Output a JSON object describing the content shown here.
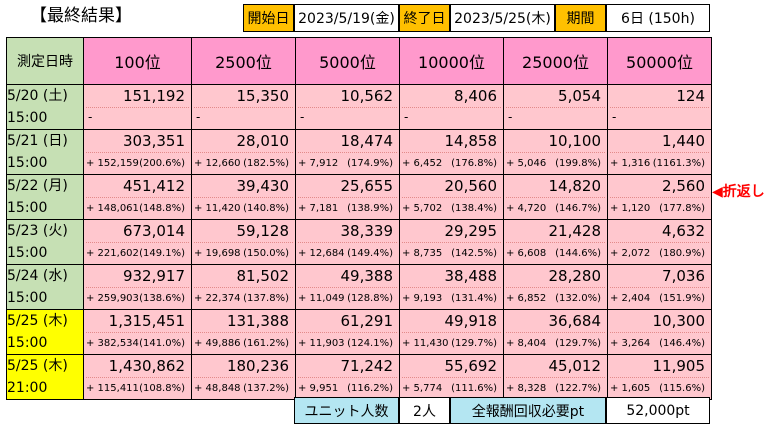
{
  "title": "【最終結果】",
  "header": {
    "start_label": "開始日",
    "start_value": "2023/5/19(金)",
    "end_label": "終了日",
    "end_value": "2023/5/25(木)",
    "period_label": "期間",
    "period_value": "6日 (150h)"
  },
  "table": {
    "corner": "測定日時",
    "columns": [
      "100位",
      "2500位",
      "5000位",
      "10000位",
      "25000位",
      "50000位"
    ],
    "rows": [
      {
        "date": "5/20 (土)",
        "time": "15:00",
        "highlight": false,
        "cells": [
          {
            "value": "151,192"
          },
          {
            "value": "15,350"
          },
          {
            "value": "10,562"
          },
          {
            "value": "8,406"
          },
          {
            "value": "5,054"
          },
          {
            "value": "124"
          }
        ]
      },
      {
        "date": "5/21 (日)",
        "time": "15:00",
        "highlight": false,
        "cells": [
          {
            "value": "303,351",
            "inc": "+ 152,159",
            "pct": "(200.6%)"
          },
          {
            "value": "28,010",
            "inc": "+ 12,660",
            "pct": "(182.5%)"
          },
          {
            "value": "18,474",
            "inc": "+ 7,912",
            "pct": "(174.9%)"
          },
          {
            "value": "14,858",
            "inc": "+ 6,452",
            "pct": "(176.8%)"
          },
          {
            "value": "10,100",
            "inc": "+ 5,046",
            "pct": "(199.8%)"
          },
          {
            "value": "1,440",
            "inc": "+ 1,316",
            "pct": "(1161.3%)"
          }
        ]
      },
      {
        "date": "5/22 (月)",
        "time": "15:00",
        "highlight": false,
        "cells": [
          {
            "value": "451,412",
            "inc": "+ 148,061",
            "pct": "(148.8%)"
          },
          {
            "value": "39,430",
            "inc": "+ 11,420",
            "pct": "(140.8%)"
          },
          {
            "value": "25,655",
            "inc": "+ 7,181",
            "pct": "(138.9%)"
          },
          {
            "value": "20,560",
            "inc": "+ 5,702",
            "pct": "(138.4%)"
          },
          {
            "value": "14,820",
            "inc": "+ 4,720",
            "pct": "(146.7%)"
          },
          {
            "value": "2,560",
            "inc": "+ 1,120",
            "pct": "(177.8%)"
          }
        ]
      },
      {
        "date": "5/23 (火)",
        "time": "15:00",
        "highlight": false,
        "cells": [
          {
            "value": "673,014",
            "inc": "+ 221,602",
            "pct": "(149.1%)"
          },
          {
            "value": "59,128",
            "inc": "+ 19,698",
            "pct": "(150.0%)"
          },
          {
            "value": "38,339",
            "inc": "+ 12,684",
            "pct": "(149.4%)"
          },
          {
            "value": "29,295",
            "inc": "+ 8,735",
            "pct": "(142.5%)"
          },
          {
            "value": "21,428",
            "inc": "+ 6,608",
            "pct": "(144.6%)"
          },
          {
            "value": "4,632",
            "inc": "+ 2,072",
            "pct": "(180.9%)"
          }
        ]
      },
      {
        "date": "5/24 (水)",
        "time": "15:00",
        "highlight": false,
        "cells": [
          {
            "value": "932,917",
            "inc": "+ 259,903",
            "pct": "(138.6%)"
          },
          {
            "value": "81,502",
            "inc": "+ 22,374",
            "pct": "(137.8%)"
          },
          {
            "value": "49,388",
            "inc": "+ 11,049",
            "pct": "(128.8%)"
          },
          {
            "value": "38,488",
            "inc": "+ 9,193",
            "pct": "(131.4%)"
          },
          {
            "value": "28,280",
            "inc": "+ 6,852",
            "pct": "(132.0%)"
          },
          {
            "value": "7,036",
            "inc": "+ 2,404",
            "pct": "(151.9%)"
          }
        ]
      },
      {
        "date": "5/25 (木)",
        "time": "15:00",
        "highlight": true,
        "cells": [
          {
            "value": "1,315,451",
            "inc": "+ 382,534",
            "pct": "(141.0%)"
          },
          {
            "value": "131,388",
            "inc": "+ 49,886",
            "pct": "(161.2%)"
          },
          {
            "value": "61,291",
            "inc": "+ 11,903",
            "pct": "(124.1%)"
          },
          {
            "value": "49,918",
            "inc": "+ 11,430",
            "pct": "(129.7%)"
          },
          {
            "value": "36,684",
            "inc": "+ 8,404",
            "pct": "(129.7%)"
          },
          {
            "value": "10,300",
            "inc": "+ 3,264",
            "pct": "(146.4%)"
          }
        ]
      },
      {
        "date": "5/25 (木)",
        "time": "21:00",
        "highlight": true,
        "cells": [
          {
            "value": "1,430,862",
            "inc": "+ 115,411",
            "pct": "(108.8%)"
          },
          {
            "value": "180,236",
            "inc": "+ 48,848",
            "pct": "(137.2%)"
          },
          {
            "value": "71,242",
            "inc": "+ 9,951",
            "pct": "(116.2%)"
          },
          {
            "value": "55,692",
            "inc": "+ 5,774",
            "pct": "(111.6%)"
          },
          {
            "value": "45,012",
            "inc": "+ 8,328",
            "pct": "(122.7%)"
          },
          {
            "value": "11,905",
            "inc": "+ 1,605",
            "pct": "(115.6%)"
          }
        ]
      }
    ]
  },
  "annotation": "◀折返し",
  "summary": {
    "unit_label": "ユニット人数",
    "unit_value": "2人",
    "reward_label": "全報酬回収必要pt",
    "reward_value": "52,000pt"
  },
  "colors": {
    "header_label": "#ffc000",
    "column_header": "#ff99cc",
    "date_column": "#c6e0b4",
    "date_highlight": "#ffff00",
    "cell": "#ffc7ce",
    "summary_label": "#b4e6f2",
    "annotation": "#ff0000"
  }
}
